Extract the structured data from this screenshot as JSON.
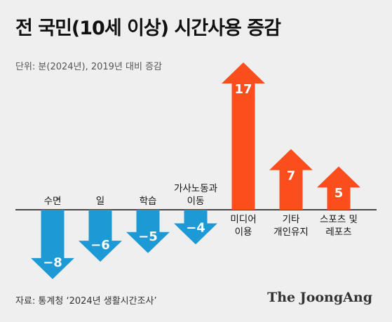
{
  "header": {
    "title": "전 국민(10세 이상) 시간사용 증감",
    "unit": "단위: 분(2024년), 2019년 대비 증감"
  },
  "footer": {
    "source": "자료: 통계청 ‘2024년 생활시간조사’",
    "brand": "The JoongAng"
  },
  "chart_data": {
    "type": "bar",
    "title": "전 국민(10세 이상) 시간사용 증감",
    "subtitle": "단위: 분(2024년), 2019년 대비 증감",
    "categories": [
      [
        "수면"
      ],
      [
        "일"
      ],
      [
        "학습"
      ],
      [
        "가사노동과",
        "이동"
      ],
      [
        "미디어",
        "이용"
      ],
      [
        "기타",
        "개인유지"
      ],
      [
        "스포츠 및",
        "레포츠"
      ]
    ],
    "values": [
      -8,
      -6,
      -5,
      -4,
      17,
      7,
      5
    ],
    "value_labels": [
      "−8",
      "−6",
      "−5",
      "−4",
      "17",
      "7",
      "5"
    ],
    "colors": {
      "negative": "#1d9ad6",
      "positive": "#fb4e1c"
    }
  }
}
